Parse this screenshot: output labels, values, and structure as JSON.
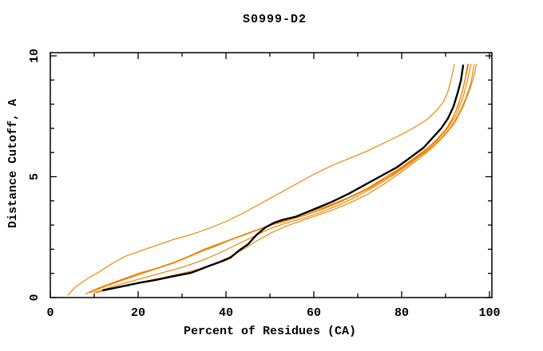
{
  "title": "S0999-D2",
  "chart_data": {
    "type": "line",
    "title": "S0999-D2",
    "xlabel": "Percent of Residues (CA)",
    "ylabel": "Distance Cutoff, A",
    "xlim": [
      0,
      100
    ],
    "ylim": [
      0,
      10
    ],
    "x_major_ticks": [
      0,
      20,
      40,
      60,
      80,
      100
    ],
    "x_minor_ticks": [
      10,
      30,
      50,
      70,
      90
    ],
    "y_major_ticks": [
      0,
      5,
      10
    ],
    "y_minor_ticks": [
      1,
      2,
      3,
      4,
      6,
      7,
      8,
      9
    ],
    "grid": false,
    "legend": "none",
    "frame_color": "#000000",
    "model_color": "#f08200",
    "reference_color": "#000000",
    "series": [
      {
        "name": "orange-outlier",
        "color": "#f08200",
        "width": 1.15,
        "points": [
          [
            4,
            0.1
          ],
          [
            5.5,
            0.4
          ],
          [
            7,
            0.6
          ],
          [
            9,
            0.85
          ],
          [
            11,
            1.05
          ],
          [
            14,
            1.4
          ],
          [
            17,
            1.7
          ],
          [
            20,
            1.9
          ],
          [
            24,
            2.15
          ],
          [
            28,
            2.4
          ],
          [
            32,
            2.6
          ],
          [
            36,
            2.85
          ],
          [
            40,
            3.15
          ],
          [
            44,
            3.5
          ],
          [
            48,
            3.9
          ],
          [
            52,
            4.3
          ],
          [
            56,
            4.7
          ],
          [
            60,
            5.1
          ],
          [
            64,
            5.45
          ],
          [
            68,
            5.75
          ],
          [
            72,
            6.05
          ],
          [
            76,
            6.4
          ],
          [
            80,
            6.75
          ],
          [
            83,
            7.05
          ],
          [
            86,
            7.4
          ],
          [
            88,
            7.75
          ],
          [
            89.5,
            8.1
          ],
          [
            90.5,
            8.5
          ],
          [
            91.2,
            9.0
          ],
          [
            91.8,
            9.45
          ],
          [
            92,
            9.65
          ]
        ]
      },
      {
        "name": "orange-2",
        "color": "#f08200",
        "width": 1.15,
        "points": [
          [
            8,
            0.15
          ],
          [
            11,
            0.4
          ],
          [
            14,
            0.6
          ],
          [
            17,
            0.8
          ],
          [
            20,
            1.0
          ],
          [
            24,
            1.2
          ],
          [
            28,
            1.45
          ],
          [
            32,
            1.75
          ],
          [
            35,
            2.0
          ],
          [
            38,
            2.2
          ],
          [
            41,
            2.4
          ],
          [
            44,
            2.6
          ],
          [
            47,
            2.8
          ],
          [
            50,
            3.0
          ],
          [
            53,
            3.15
          ],
          [
            56,
            3.35
          ],
          [
            60,
            3.6
          ],
          [
            64,
            3.85
          ],
          [
            68,
            4.15
          ],
          [
            72,
            4.5
          ],
          [
            76,
            4.95
          ],
          [
            80,
            5.4
          ],
          [
            83,
            5.8
          ],
          [
            86,
            6.2
          ],
          [
            88,
            6.55
          ],
          [
            90,
            6.95
          ],
          [
            91.5,
            7.4
          ],
          [
            92.8,
            7.9
          ],
          [
            93.8,
            8.5
          ],
          [
            94.5,
            9.1
          ],
          [
            95,
            9.65
          ]
        ]
      },
      {
        "name": "orange-3",
        "color": "#f08200",
        "width": 1.15,
        "points": [
          [
            9,
            0.2
          ],
          [
            13,
            0.5
          ],
          [
            17,
            0.75
          ],
          [
            21,
            1.0
          ],
          [
            25,
            1.25
          ],
          [
            29,
            1.5
          ],
          [
            33,
            1.8
          ],
          [
            36,
            2.05
          ],
          [
            39,
            2.25
          ],
          [
            42,
            2.45
          ],
          [
            45,
            2.65
          ],
          [
            48,
            2.85
          ],
          [
            51,
            3.05
          ],
          [
            54,
            3.2
          ],
          [
            58,
            3.4
          ],
          [
            62,
            3.65
          ],
          [
            66,
            3.95
          ],
          [
            70,
            4.3
          ],
          [
            74,
            4.7
          ],
          [
            78,
            5.1
          ],
          [
            82,
            5.6
          ],
          [
            85,
            6.0
          ],
          [
            88,
            6.5
          ],
          [
            90.5,
            7.0
          ],
          [
            92.5,
            7.6
          ],
          [
            94,
            8.3
          ],
          [
            95,
            9.0
          ],
          [
            95.5,
            9.45
          ],
          [
            95.8,
            9.65
          ]
        ]
      },
      {
        "name": "orange-4",
        "color": "#f08200",
        "width": 1.15,
        "points": [
          [
            10,
            0.2
          ],
          [
            14,
            0.45
          ],
          [
            18,
            0.65
          ],
          [
            22,
            0.85
          ],
          [
            26,
            1.05
          ],
          [
            30,
            1.25
          ],
          [
            34,
            1.5
          ],
          [
            38,
            1.8
          ],
          [
            42,
            2.15
          ],
          [
            46,
            2.5
          ],
          [
            50,
            2.85
          ],
          [
            54,
            3.1
          ],
          [
            58,
            3.3
          ],
          [
            62,
            3.55
          ],
          [
            66,
            3.85
          ],
          [
            70,
            4.2
          ],
          [
            74,
            4.6
          ],
          [
            78,
            5.05
          ],
          [
            82,
            5.55
          ],
          [
            86,
            6.1
          ],
          [
            89,
            6.6
          ],
          [
            91,
            7.0
          ],
          [
            93,
            7.6
          ],
          [
            94.5,
            8.2
          ],
          [
            95.8,
            8.9
          ],
          [
            96.5,
            9.65
          ]
        ]
      },
      {
        "name": "orange-5",
        "color": "#f08200",
        "width": 1.15,
        "points": [
          [
            10.5,
            0.2
          ],
          [
            15,
            0.42
          ],
          [
            20,
            0.62
          ],
          [
            25,
            0.8
          ],
          [
            30,
            1.0
          ],
          [
            34,
            1.18
          ],
          [
            38,
            1.45
          ],
          [
            41,
            1.7
          ],
          [
            44,
            2.0
          ],
          [
            47,
            2.35
          ],
          [
            50,
            2.65
          ],
          [
            53,
            2.9
          ],
          [
            56,
            3.1
          ],
          [
            60,
            3.35
          ],
          [
            64,
            3.6
          ],
          [
            68,
            3.9
          ],
          [
            72,
            4.25
          ],
          [
            76,
            4.7
          ],
          [
            80,
            5.2
          ],
          [
            84,
            5.75
          ],
          [
            87,
            6.2
          ],
          [
            90,
            6.75
          ],
          [
            92,
            7.2
          ],
          [
            94,
            7.9
          ],
          [
            95.5,
            8.6
          ],
          [
            96.5,
            9.2
          ],
          [
            97,
            9.65
          ]
        ]
      },
      {
        "name": "orange-6",
        "color": "#f08200",
        "width": 1.15,
        "points": [
          [
            8.5,
            0.2
          ],
          [
            12,
            0.45
          ],
          [
            16,
            0.7
          ],
          [
            20,
            0.95
          ],
          [
            24,
            1.18
          ],
          [
            28,
            1.42
          ],
          [
            32,
            1.72
          ],
          [
            35,
            1.95
          ],
          [
            38,
            2.15
          ],
          [
            41,
            2.38
          ],
          [
            44,
            2.58
          ],
          [
            47,
            2.78
          ],
          [
            50,
            2.98
          ],
          [
            53,
            3.13
          ],
          [
            57,
            3.35
          ],
          [
            61,
            3.6
          ],
          [
            65,
            3.9
          ],
          [
            69,
            4.2
          ],
          [
            73,
            4.55
          ],
          [
            77,
            5.0
          ],
          [
            81,
            5.5
          ],
          [
            84,
            5.9
          ],
          [
            87,
            6.35
          ],
          [
            89.5,
            6.8
          ],
          [
            91,
            7.2
          ],
          [
            92.3,
            7.7
          ],
          [
            93.3,
            8.2
          ],
          [
            94.2,
            8.8
          ],
          [
            94.8,
            9.3
          ],
          [
            95.2,
            9.65
          ]
        ]
      },
      {
        "name": "black-reference",
        "color": "#000000",
        "width": 2.4,
        "points": [
          [
            12,
            0.3
          ],
          [
            16,
            0.45
          ],
          [
            20,
            0.6
          ],
          [
            24,
            0.73
          ],
          [
            28,
            0.88
          ],
          [
            32,
            1.02
          ],
          [
            36,
            1.3
          ],
          [
            39,
            1.5
          ],
          [
            41,
            1.65
          ],
          [
            43,
            1.95
          ],
          [
            45,
            2.2
          ],
          [
            47,
            2.6
          ],
          [
            49,
            2.9
          ],
          [
            51,
            3.1
          ],
          [
            53,
            3.22
          ],
          [
            56,
            3.35
          ],
          [
            60,
            3.65
          ],
          [
            64,
            3.95
          ],
          [
            68,
            4.3
          ],
          [
            72,
            4.7
          ],
          [
            76,
            5.1
          ],
          [
            79,
            5.4
          ],
          [
            82,
            5.8
          ],
          [
            85,
            6.2
          ],
          [
            87,
            6.6
          ],
          [
            89,
            7.0
          ],
          [
            90.5,
            7.4
          ],
          [
            91.8,
            7.9
          ],
          [
            92.8,
            8.5
          ],
          [
            93.5,
            9.0
          ],
          [
            94,
            9.6
          ]
        ]
      }
    ]
  }
}
